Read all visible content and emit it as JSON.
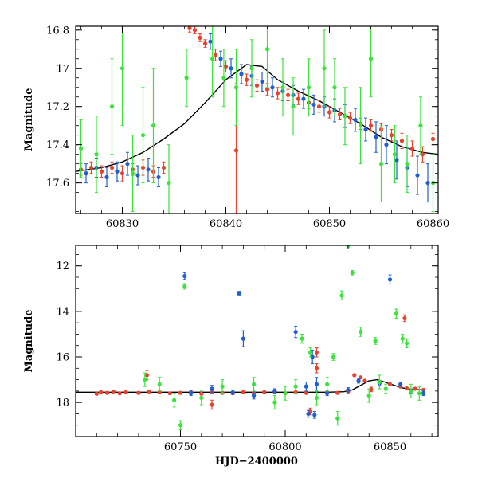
{
  "chart_data": [
    {
      "type": "scatter",
      "panel": "top",
      "title": "",
      "xlabel": "",
      "ylabel": "Magnitude",
      "xlim": [
        60825.5,
        60860.5
      ],
      "ylim": [
        16.78,
        17.76
      ],
      "y_inverted": true,
      "grid": false,
      "legend": "none",
      "x_ticks": [
        60830,
        60840,
        60850,
        60860
      ],
      "y_ticks": [
        16.8,
        17,
        17.2,
        17.4,
        17.6
      ],
      "x_tick_labels": [
        "60830",
        "60840",
        "60850",
        "60860"
      ],
      "y_tick_labels": [
        "16.8",
        "17",
        "17.2",
        "17.4",
        "17.6"
      ],
      "model_curve": {
        "color": "#000000",
        "x": [
          60825.5,
          60828,
          60830,
          60832,
          60834,
          60836,
          60838,
          60840,
          60842,
          60843.5,
          60845,
          60847,
          60849,
          60851,
          60853,
          60855,
          60857,
          60859,
          60860.5
        ],
        "y": [
          17.54,
          17.52,
          17.49,
          17.44,
          17.37,
          17.29,
          17.18,
          17.06,
          16.98,
          16.99,
          17.06,
          17.12,
          17.17,
          17.23,
          17.29,
          17.36,
          17.41,
          17.44,
          17.45
        ]
      },
      "series": [
        {
          "color": "#e8412c",
          "x": [
            60826,
            60827,
            60828,
            60829,
            60830,
            60831,
            60832,
            60833,
            60834,
            60836.5,
            60837,
            60837.5,
            60838,
            60839,
            60840,
            60841,
            60842,
            60843,
            60844,
            60845,
            60846,
            60847,
            60848,
            60849,
            60850,
            60851,
            60852,
            60853,
            60854,
            60855,
            60856,
            60857,
            60858,
            60859,
            60860
          ],
          "y": [
            17.53,
            17.52,
            17.54,
            17.52,
            17.55,
            17.53,
            17.52,
            17.54,
            17.52,
            16.79,
            16.8,
            16.84,
            16.87,
            16.93,
            16.99,
            17.43,
            17.06,
            17.09,
            17.11,
            17.13,
            17.14,
            17.16,
            17.18,
            17.2,
            17.23,
            17.24,
            17.26,
            17.29,
            17.3,
            17.32,
            17.35,
            17.38,
            17.42,
            17.45,
            17.37
          ],
          "err": [
            0.03,
            0.03,
            0.03,
            0.03,
            0.04,
            0.03,
            0.04,
            0.03,
            0.03,
            0.02,
            0.02,
            0.02,
            0.02,
            0.03,
            0.03,
            0.35,
            0.03,
            0.03,
            0.03,
            0.03,
            0.03,
            0.03,
            0.03,
            0.03,
            0.03,
            0.03,
            0.03,
            0.03,
            0.03,
            0.03,
            0.03,
            0.04,
            0.04,
            0.04,
            0.03
          ]
        },
        {
          "color": "#1f5fd4",
          "x": [
            60826.5,
            60827.5,
            60828.5,
            60829.5,
            60830.5,
            60831.5,
            60832.5,
            60833.5,
            60838.5,
            60839.5,
            60840.5,
            60841.5,
            60842.5,
            60843.5,
            60844.5,
            60845.5,
            60846.5,
            60847.5,
            60848.5,
            60849.5,
            60850.5,
            60851.5,
            60852.5,
            60853.5,
            60854.5,
            60855.5,
            60856.5,
            60857.5,
            60858.5,
            60859.5
          ],
          "y": [
            17.55,
            17.52,
            17.57,
            17.54,
            17.5,
            17.56,
            17.53,
            17.57,
            16.86,
            16.95,
            17.0,
            17.03,
            17.04,
            17.07,
            17.1,
            17.12,
            17.14,
            17.16,
            17.19,
            17.2,
            17.22,
            17.25,
            17.27,
            17.32,
            17.36,
            17.4,
            17.48,
            17.52,
            17.56,
            17.6
          ],
          "err": [
            0.05,
            0.05,
            0.05,
            0.05,
            0.06,
            0.05,
            0.06,
            0.05,
            0.04,
            0.04,
            0.05,
            0.05,
            0.05,
            0.05,
            0.05,
            0.05,
            0.05,
            0.05,
            0.05,
            0.05,
            0.06,
            0.06,
            0.06,
            0.06,
            0.08,
            0.1,
            0.1,
            0.1,
            0.1,
            0.1
          ]
        },
        {
          "color": "#3be33b",
          "x": [
            60826,
            60827.5,
            60829,
            60830,
            60831,
            60832,
            60833,
            60834.5,
            60836.2,
            60838.7,
            60839.8,
            60841,
            60842.5,
            60844,
            60845.5,
            60846.5,
            60848,
            60849.5,
            60850.5,
            60851.5,
            60853,
            60854,
            60855,
            60856.3,
            60857.5,
            60858.8,
            60860
          ],
          "y": [
            17.42,
            17.45,
            17.2,
            17.0,
            17.55,
            17.35,
            17.3,
            17.6,
            17.05,
            16.95,
            17.05,
            17.1,
            17.0,
            16.9,
            17.1,
            17.2,
            17.1,
            17.0,
            17.1,
            17.25,
            17.3,
            16.95,
            17.5,
            17.45,
            17.5,
            17.3,
            17.6
          ],
          "err": [
            0.15,
            0.2,
            0.25,
            0.3,
            0.2,
            0.25,
            0.3,
            0.2,
            0.15,
            0.2,
            0.15,
            0.2,
            0.15,
            0.2,
            0.15,
            0.15,
            0.15,
            0.2,
            0.15,
            0.15,
            0.2,
            0.2,
            0.2,
            0.15,
            0.15,
            0.15,
            0.15
          ]
        }
      ]
    },
    {
      "type": "scatter",
      "panel": "bottom",
      "title": "",
      "xlabel": "HJD−2400000",
      "ylabel": "Magnitude",
      "xlim": [
        60700,
        60873
      ],
      "ylim": [
        11.1,
        19.5
      ],
      "y_inverted": true,
      "grid": false,
      "legend": "none",
      "x_ticks": [
        60750,
        60800,
        60850
      ],
      "y_ticks": [
        12,
        14,
        16,
        18
      ],
      "x_tick_labels": [
        "60750",
        "60800",
        "60850"
      ],
      "y_tick_labels": [
        "12",
        "14",
        "16",
        "18"
      ],
      "model_curve": {
        "color": "#000000",
        "x": [
          60700,
          60720,
          60740,
          60760,
          60780,
          60800,
          60820,
          60828,
          60832,
          60836,
          60840,
          60844,
          60848,
          60852,
          60856,
          60860,
          60866
        ],
        "y": [
          17.55,
          17.55,
          17.55,
          17.55,
          17.55,
          17.55,
          17.55,
          17.53,
          17.45,
          17.25,
          17.05,
          17.0,
          17.12,
          17.25,
          17.36,
          17.42,
          17.45
        ]
      },
      "series": [
        {
          "color": "#e8412c",
          "x": [
            60710,
            60712,
            60715,
            60718,
            60721,
            60724,
            60730,
            60735,
            60740,
            60745,
            60750,
            60755,
            60760,
            60765,
            60770,
            60775,
            60780,
            60785,
            60790,
            60795,
            60800,
            60805,
            60810,
            60812,
            60815,
            60820,
            60825,
            60830,
            60833,
            60836,
            60838,
            60841,
            60845,
            60850,
            60855,
            60858,
            60862,
            60866,
            60734,
            60765,
            60815,
            60857
          ],
          "y": [
            17.62,
            17.55,
            17.58,
            17.52,
            17.6,
            17.55,
            17.58,
            17.52,
            17.55,
            17.6,
            17.58,
            17.55,
            17.62,
            17.55,
            17.58,
            17.6,
            17.55,
            17.58,
            17.55,
            17.52,
            17.6,
            17.55,
            17.58,
            18.4,
            16.5,
            17.55,
            17.58,
            17.52,
            16.8,
            16.9,
            17.05,
            17.43,
            17.12,
            17.2,
            17.3,
            17.38,
            17.4,
            17.45,
            16.8,
            18.1,
            15.8,
            14.3
          ],
          "err": [
            0.05,
            0.05,
            0.05,
            0.05,
            0.05,
            0.05,
            0.05,
            0.05,
            0.05,
            0.05,
            0.05,
            0.05,
            0.05,
            0.05,
            0.05,
            0.05,
            0.05,
            0.05,
            0.05,
            0.05,
            0.05,
            0.05,
            0.05,
            0.15,
            0.2,
            0.05,
            0.05,
            0.05,
            0.05,
            0.05,
            0.05,
            0.1,
            0.05,
            0.05,
            0.05,
            0.05,
            0.05,
            0.05,
            0.2,
            0.2,
            0.2,
            0.15
          ]
        },
        {
          "color": "#1f5fd4",
          "x": [
            60752,
            60778,
            60780,
            60805,
            60813,
            60755,
            60765,
            60775,
            60785,
            60795,
            60810,
            60815,
            60820,
            60830,
            60835,
            60845,
            60850,
            60855,
            60860,
            60866,
            60811,
            60814
          ],
          "y": [
            12.45,
            13.2,
            15.2,
            14.9,
            16.0,
            17.6,
            17.4,
            17.55,
            17.7,
            17.5,
            17.3,
            17.2,
            17.6,
            17.45,
            17.05,
            17.15,
            12.6,
            17.2,
            17.5,
            17.6,
            18.5,
            18.55
          ],
          "err": [
            0.15,
            0.08,
            0.35,
            0.25,
            0.3,
            0.1,
            0.15,
            0.1,
            0.15,
            0.1,
            0.2,
            0.3,
            0.1,
            0.1,
            0.1,
            0.1,
            0.2,
            0.1,
            0.1,
            0.1,
            0.15,
            0.15
          ]
        },
        {
          "color": "#3be33b",
          "x": [
            60752,
            60747,
            60750,
            60808,
            60812,
            60823,
            60827,
            60830,
            60832,
            60836,
            60843,
            60848,
            60853,
            60856,
            60858,
            60733,
            60740,
            60760,
            60770,
            60785,
            60795,
            60800,
            60805,
            60815,
            60820,
            60825,
            60840,
            60845,
            60860,
            60864
          ],
          "y": [
            12.9,
            17.9,
            19.0,
            15.2,
            15.8,
            16.0,
            13.3,
            11.1,
            12.3,
            14.9,
            15.3,
            17.4,
            14.1,
            15.2,
            15.4,
            17.0,
            17.2,
            17.8,
            17.3,
            17.2,
            18.0,
            17.6,
            17.3,
            17.8,
            17.2,
            18.7,
            17.7,
            17.1,
            17.5,
            17.6
          ],
          "err": [
            0.12,
            0.3,
            0.2,
            0.2,
            0.2,
            0.15,
            0.2,
            0.1,
            0.1,
            0.2,
            0.15,
            0.2,
            0.2,
            0.2,
            0.2,
            0.3,
            0.3,
            0.3,
            0.3,
            0.3,
            0.3,
            0.3,
            0.3,
            0.3,
            0.3,
            0.3,
            0.3,
            0.3,
            0.3,
            0.3
          ]
        }
      ]
    }
  ]
}
